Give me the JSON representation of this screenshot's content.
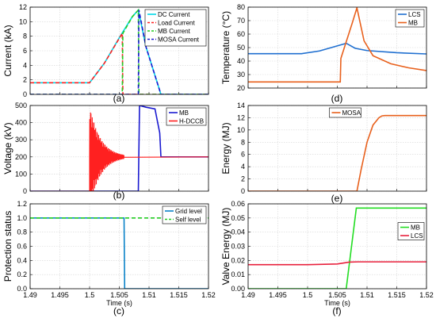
{
  "chart_data": [
    {
      "type": "line",
      "panel_label": "(a)",
      "ylabel": "Current (kA)",
      "xlim": [
        1.49,
        1.52
      ],
      "ylim": [
        0,
        12
      ],
      "yticks": [
        0,
        2,
        4,
        6,
        8,
        10,
        12
      ],
      "grid": true,
      "legend": "top-right",
      "series": [
        {
          "name": "DC Current",
          "color": "#00d8e8",
          "dash": "solid",
          "x": [
            1.49,
            1.5,
            1.5025,
            1.505,
            1.5072,
            1.5082,
            1.5095,
            1.512,
            1.52
          ],
          "y": [
            1.6,
            1.6,
            4.3,
            7.8,
            10.7,
            11.6,
            6.5,
            0.0,
            0.0
          ]
        },
        {
          "name": "Load Current",
          "color": "#ff2020",
          "dash": "dashed",
          "x": [
            1.49,
            1.5,
            1.5025,
            1.5055,
            1.5056,
            1.52
          ],
          "y": [
            1.6,
            1.6,
            4.3,
            8.4,
            0.0,
            0.0
          ]
        },
        {
          "name": "MB Current",
          "color": "#22cc22",
          "dash": "dashed",
          "x": [
            1.49,
            1.5055,
            1.5056,
            1.5072,
            1.5082,
            1.5083,
            1.52
          ],
          "y": [
            0.0,
            0.0,
            8.4,
            10.7,
            11.6,
            0.0,
            0.0
          ]
        },
        {
          "name": "MOSA Current",
          "color": "#1a1ad0",
          "dash": "dashed",
          "x": [
            1.49,
            1.5082,
            1.5083,
            1.5095,
            1.512,
            1.52
          ],
          "y": [
            0.0,
            0.0,
            11.6,
            6.5,
            0.0,
            0.0
          ]
        }
      ]
    },
    {
      "type": "line",
      "panel_label": "(b)",
      "ylabel": "Voltage (kV)",
      "xlim": [
        1.49,
        1.52
      ],
      "ylim": [
        0,
        500
      ],
      "yticks": [
        0,
        100,
        200,
        300,
        400,
        500
      ],
      "grid": true,
      "legend": "top-right",
      "series": [
        {
          "name": "MB",
          "color": "#1a1ad0",
          "x": [
            1.49,
            1.5082,
            1.5084,
            1.5095,
            1.511,
            1.5118,
            1.512,
            1.52
          ],
          "y": [
            0,
            0,
            500,
            490,
            480,
            340,
            200,
            200
          ]
        },
        {
          "name": "H-DCCB",
          "color": "#ff2020",
          "x": [
            1.49,
            1.5,
            1.5004,
            1.5058,
            1.52
          ],
          "y": [
            0,
            0,
            200,
            200,
            200
          ],
          "oscillation": {
            "x_start": 1.5,
            "x_end": 1.5058,
            "center": 200,
            "peak_amplitude": 300
          }
        }
      ]
    },
    {
      "type": "line",
      "panel_label": "(c)",
      "ylabel": "Protection status",
      "xlabel": "Time (s)",
      "xlim": [
        1.49,
        1.52
      ],
      "ylim": [
        0,
        1.2
      ],
      "yticks": [
        0,
        0.2,
        0.4,
        0.6,
        0.8,
        1.0,
        1.2
      ],
      "xticks": [
        1.49,
        1.495,
        1.5,
        1.505,
        1.51,
        1.515,
        1.52
      ],
      "grid": true,
      "legend": "top-right",
      "series": [
        {
          "name": "Grid level",
          "color": "#0a82c8",
          "dash": "solid",
          "x": [
            1.49,
            1.5058,
            1.5059,
            1.52
          ],
          "y": [
            1,
            1,
            0,
            0
          ]
        },
        {
          "name": "Self level",
          "color": "#22cc22",
          "dash": "dashed",
          "x": [
            1.49,
            1.52
          ],
          "y": [
            1,
            1
          ]
        }
      ]
    },
    {
      "type": "line",
      "panel_label": "(d)",
      "ylabel": "Temperature (°C)",
      "xlim": [
        1.49,
        1.52
      ],
      "ylim": [
        20,
        80
      ],
      "yticks": [
        20,
        30,
        40,
        50,
        60,
        70,
        80
      ],
      "grid": true,
      "legend": "top-right",
      "series": [
        {
          "name": "LCS",
          "color": "#1f6fd0",
          "x": [
            1.49,
            1.499,
            1.502,
            1.5065,
            1.508,
            1.51,
            1.515,
            1.52
          ],
          "y": [
            45.5,
            45.5,
            47.5,
            53.2,
            49.5,
            47.8,
            46.2,
            45.3
          ]
        },
        {
          "name": "MB",
          "color": "#e8601c",
          "x": [
            1.49,
            1.5055,
            1.5056,
            1.5075,
            1.5083,
            1.5095,
            1.511,
            1.514,
            1.517,
            1.52
          ],
          "y": [
            24.5,
            24.5,
            42,
            68,
            79.5,
            55,
            44,
            38,
            35,
            33
          ]
        }
      ]
    },
    {
      "type": "line",
      "panel_label": "(e)",
      "ylabel": "Energy (MJ)",
      "xlim": [
        1.49,
        1.52
      ],
      "ylim": [
        0,
        14
      ],
      "yticks": [
        0,
        2,
        4,
        6,
        8,
        10,
        12,
        14
      ],
      "grid": true,
      "legend": "top-center",
      "series": [
        {
          "name": "MOSA",
          "color": "#e8601c",
          "x": [
            1.49,
            1.5083,
            1.509,
            1.51,
            1.511,
            1.512,
            1.5125,
            1.513,
            1.52
          ],
          "y": [
            0,
            0,
            3.5,
            8.0,
            10.8,
            12.0,
            12.3,
            12.35,
            12.35
          ]
        }
      ]
    },
    {
      "type": "line",
      "panel_label": "(f)",
      "ylabel": "Valve Energy (MJ)",
      "xlabel": "Time (s)",
      "xlim": [
        1.49,
        1.52
      ],
      "ylim": [
        0,
        0.06
      ],
      "yticks": [
        0,
        0.01,
        0.02,
        0.03,
        0.04,
        0.05,
        0.06
      ],
      "xticks": [
        1.49,
        1.495,
        1.5,
        1.505,
        1.51,
        1.515,
        1.52
      ],
      "grid": true,
      "legend": "right",
      "series": [
        {
          "name": "MB",
          "color": "#22dd22",
          "x": [
            1.49,
            1.5065,
            1.5082,
            1.52
          ],
          "y": [
            0,
            0,
            0.057,
            0.057
          ]
        },
        {
          "name": "LCS",
          "color": "#e8203c",
          "x": [
            1.49,
            1.5,
            1.505,
            1.507,
            1.5085,
            1.52
          ],
          "y": [
            0.017,
            0.017,
            0.0175,
            0.0188,
            0.019,
            0.019
          ]
        }
      ]
    }
  ]
}
